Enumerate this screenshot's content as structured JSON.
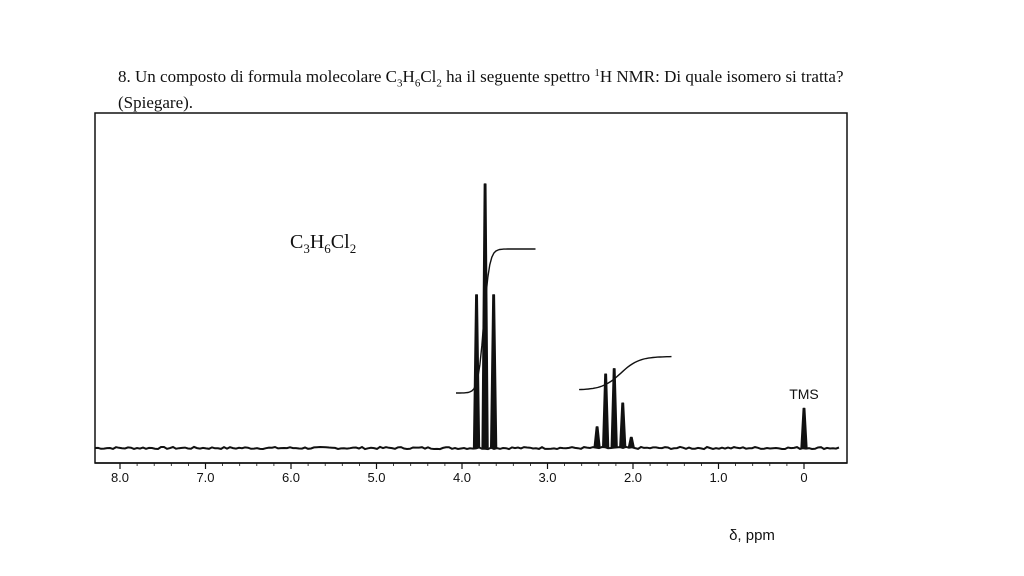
{
  "question": {
    "number": "8.",
    "text_before": "Un composto di formula molecolare C",
    "sub1": "3",
    "h": "H",
    "sub2": "6",
    "cl": "Cl",
    "sub3": "2",
    "text_mid": " ha il seguente spettro ",
    "sup": "1",
    "text_after": "H NMR: Di quale isomero si tratta? (Spiegare)."
  },
  "chart_data": {
    "type": "line",
    "xlabel": "δ, ppm",
    "xlim": [
      8.3,
      -0.3
    ],
    "x_reversed": true,
    "grid": false,
    "tick_labels": [
      {
        "x": 8.0,
        "label": "8.0"
      },
      {
        "x": 7.0,
        "label": "7.0"
      },
      {
        "x": 6.0,
        "label": "6.0"
      },
      {
        "x": 5.0,
        "label": "5.0"
      },
      {
        "x": 4.0,
        "label": "4.0"
      },
      {
        "x": 3.0,
        "label": "3.0"
      },
      {
        "x": 2.0,
        "label": "2.0"
      },
      {
        "x": 1.0,
        "label": "1.0"
      },
      {
        "x": 0,
        "label": "0"
      }
    ],
    "formula": {
      "c": "C",
      "n1": "3",
      "h": "H",
      "n2": "6",
      "cl": "Cl",
      "n3": "2"
    },
    "peaks": [
      {
        "group": "triplet-3.7",
        "x": 3.83,
        "height": 0.58
      },
      {
        "group": "triplet-3.7",
        "x": 3.73,
        "height": 1.0
      },
      {
        "group": "triplet-3.7",
        "x": 3.63,
        "height": 0.58
      },
      {
        "group": "quintet-2.2",
        "x": 2.42,
        "height": 0.08
      },
      {
        "group": "quintet-2.2",
        "x": 2.32,
        "height": 0.28
      },
      {
        "group": "quintet-2.2",
        "x": 2.22,
        "height": 0.3
      },
      {
        "group": "quintet-2.2",
        "x": 2.12,
        "height": 0.17
      },
      {
        "group": "quintet-2.2",
        "x": 2.02,
        "height": 0.04
      },
      {
        "group": "TMS",
        "x": 0.0,
        "height": 0.15
      }
    ],
    "integrals": [
      {
        "x_start": 4.07,
        "x_end": 3.14,
        "relative_area": 2
      },
      {
        "x_start": 2.63,
        "x_end": 1.55,
        "relative_area": 1
      }
    ],
    "annotations": [
      {
        "text": "TMS",
        "x": 0.0
      }
    ]
  }
}
